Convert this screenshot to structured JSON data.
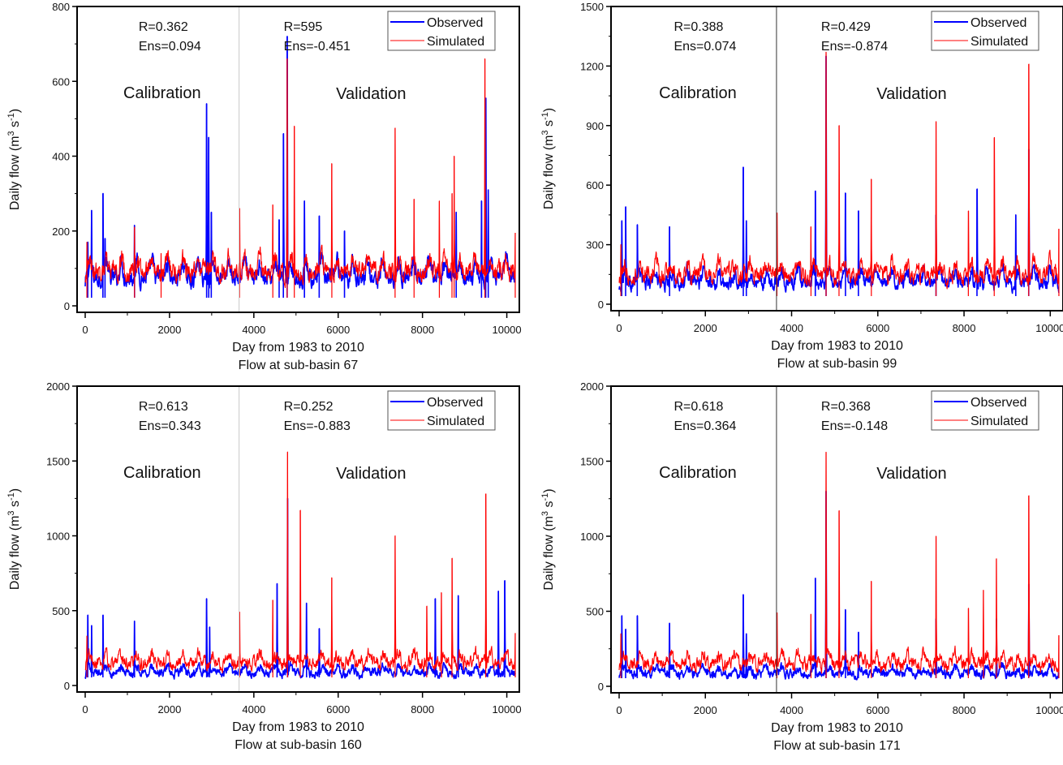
{
  "figure": {
    "legend": {
      "observed_label": "Observed",
      "simulated_label": "Simulated",
      "observed_color": "#0000ff",
      "simulated_color": "#ff0000"
    },
    "colors": {
      "axis": "#000000",
      "split_line_light": "#c8c8c8",
      "split_line_dark": "#333333"
    }
  },
  "chart_data": [
    {
      "type": "line",
      "id": "sub-basin-67",
      "title": "Flow at sub-basin 67",
      "xlabel": "Day from 1983 to 2010",
      "ylabel": "Daily flow (m3 s-1)",
      "xlim": [
        0,
        10220
      ],
      "ylim": [
        0,
        800
      ],
      "xticks": [
        0,
        2000,
        4000,
        6000,
        8000,
        10000
      ],
      "xtick_labels": [
        "0",
        "2000",
        "4000",
        "6000",
        "8000",
        "10000"
      ],
      "yticks": [
        0,
        200,
        400,
        600,
        800
      ],
      "ytick_labels": [
        "0",
        "200",
        "400",
        "600",
        "800"
      ],
      "split_day": 3650,
      "split_style": "light",
      "legend_position": "top-right",
      "calibration": {
        "label": "Calibration",
        "r": "R=0.362",
        "ens": "Ens=0.094"
      },
      "validation": {
        "label": "Validation",
        "r": "R=595",
        "ens": "Ens=-0.451"
      },
      "series": [
        {
          "name": "Observed",
          "color": "#0000ff",
          "base": 55,
          "amp": 45,
          "noise": 35,
          "peaks": [
            [
              60,
              170
            ],
            [
              150,
              255
            ],
            [
              420,
              300
            ],
            [
              470,
              180
            ],
            [
              1170,
              215
            ],
            [
              2880,
              540
            ],
            [
              2930,
              450
            ],
            [
              2990,
              250
            ],
            [
              4600,
              230
            ],
            [
              4700,
              460
            ],
            [
              4790,
              720
            ],
            [
              5200,
              280
            ],
            [
              5550,
              240
            ],
            [
              6150,
              200
            ],
            [
              8800,
              250
            ],
            [
              9400,
              280
            ],
            [
              9500,
              555
            ],
            [
              9560,
              310
            ]
          ]
        },
        {
          "name": "Simulated",
          "color": "#ff0000",
          "base": 75,
          "amp": 35,
          "noise": 40,
          "peaks": [
            [
              40,
              170
            ],
            [
              1170,
              210
            ],
            [
              1800,
              140
            ],
            [
              3660,
              260
            ],
            [
              4450,
              270
            ],
            [
              4790,
              660
            ],
            [
              4960,
              480
            ],
            [
              5850,
              380
            ],
            [
              7350,
              475
            ],
            [
              7800,
              285
            ],
            [
              8400,
              280
            ],
            [
              8700,
              300
            ],
            [
              8750,
              400
            ],
            [
              9480,
              660
            ],
            [
              10200,
              195
            ]
          ]
        }
      ]
    },
    {
      "type": "line",
      "id": "sub-basin-99",
      "title": "Flow at sub-basin 99",
      "xlabel": "Day from 1983 to 2010",
      "ylabel": "Daily flow (m3 s-1)",
      "xlim": [
        0,
        10220
      ],
      "ylim": [
        0,
        1500
      ],
      "xticks": [
        0,
        2000,
        4000,
        6000,
        8000,
        10000
      ],
      "xtick_labels": [
        "0",
        "2000",
        "4000",
        "6000",
        "8000",
        "10000"
      ],
      "yticks": [
        0,
        300,
        600,
        900,
        1200,
        1500
      ],
      "ytick_labels": [
        "0",
        "300",
        "600",
        "900",
        "1200",
        "1500"
      ],
      "split_day": 3650,
      "split_style": "dark",
      "legend_position": "top-right",
      "calibration": {
        "label": "Calibration",
        "r": "R=0.388",
        "ens": "Ens=0.074"
      },
      "validation": {
        "label": "Validation",
        "r": "R=0.429",
        "ens": "Ens=-0.874"
      },
      "series": [
        {
          "name": "Observed",
          "color": "#0000ff",
          "base": 70,
          "amp": 60,
          "noise": 55,
          "peaks": [
            [
              60,
              420
            ],
            [
              150,
              490
            ],
            [
              420,
              400
            ],
            [
              1170,
              390
            ],
            [
              2880,
              690
            ],
            [
              2950,
              420
            ],
            [
              4550,
              570
            ],
            [
              4800,
              1250
            ],
            [
              5250,
              560
            ],
            [
              5550,
              470
            ],
            [
              7350,
              450
            ],
            [
              8300,
              580
            ],
            [
              9200,
              450
            ],
            [
              9500,
              780
            ]
          ]
        },
        {
          "name": "Simulated",
          "color": "#ff0000",
          "base": 110,
          "amp": 55,
          "noise": 70,
          "peaks": [
            [
              40,
              300
            ],
            [
              3660,
              460
            ],
            [
              4450,
              390
            ],
            [
              4800,
              1270
            ],
            [
              5100,
              900
            ],
            [
              5850,
              630
            ],
            [
              7350,
              920
            ],
            [
              8100,
              470
            ],
            [
              8700,
              840
            ],
            [
              9500,
              1210
            ],
            [
              10200,
              380
            ]
          ]
        }
      ]
    },
    {
      "type": "line",
      "id": "sub-basin-160",
      "title": "Flow at sub-basin 160",
      "xlabel": "Day from 1983 to 2010",
      "ylabel": "Daily flow (m3 s-1)",
      "xlim": [
        0,
        10220
      ],
      "ylim": [
        0,
        2000
      ],
      "xticks": [
        0,
        2000,
        4000,
        6000,
        8000,
        10000
      ],
      "xtick_labels": [
        "0",
        "2000",
        "4000",
        "6000",
        "8000",
        "10000"
      ],
      "yticks": [
        0,
        500,
        1000,
        1500,
        2000
      ],
      "ytick_labels": [
        "0",
        "500",
        "1000",
        "1500",
        "2000"
      ],
      "split_day": 3650,
      "split_style": "light",
      "legend_position": "top-right",
      "calibration": {
        "label": "Calibration",
        "r": "R=0.613",
        "ens": "Ens=0.343"
      },
      "validation": {
        "label": "Validation",
        "r": "R=0.252",
        "ens": "Ens=-0.883"
      },
      "series": [
        {
          "name": "Observed",
          "color": "#0000ff",
          "base": 50,
          "amp": 45,
          "noise": 45,
          "peaks": [
            [
              60,
              470
            ],
            [
              150,
              400
            ],
            [
              420,
              470
            ],
            [
              1170,
              430
            ],
            [
              2880,
              580
            ],
            [
              2950,
              390
            ],
            [
              4550,
              680
            ],
            [
              4800,
              1250
            ],
            [
              5250,
              550
            ],
            [
              5550,
              380
            ],
            [
              8300,
              580
            ],
            [
              8850,
              600
            ],
            [
              9800,
              630
            ],
            [
              9950,
              700
            ]
          ]
        },
        {
          "name": "Simulated",
          "color": "#ff0000",
          "base": 110,
          "amp": 60,
          "noise": 70,
          "peaks": [
            [
              40,
              330
            ],
            [
              3660,
              490
            ],
            [
              4450,
              570
            ],
            [
              4800,
              1560
            ],
            [
              5100,
              1170
            ],
            [
              5850,
              720
            ],
            [
              7350,
              1000
            ],
            [
              8100,
              530
            ],
            [
              8450,
              620
            ],
            [
              8700,
              850
            ],
            [
              9500,
              1280
            ],
            [
              10200,
              350
            ]
          ]
        }
      ]
    },
    {
      "type": "line",
      "id": "sub-basin-171",
      "title": "Flow at sub-basin 171",
      "xlabel": "Day from 1983 to 2010",
      "ylabel": "Daily flow (m3 s-1)",
      "xlim": [
        0,
        10220
      ],
      "ylim": [
        0,
        2000
      ],
      "xticks": [
        0,
        2000,
        4000,
        6000,
        8000,
        10000
      ],
      "xtick_labels": [
        "0",
        "2000",
        "4000",
        "6000",
        "8000",
        "10000"
      ],
      "yticks": [
        0,
        500,
        1000,
        1500,
        2000
      ],
      "ytick_labels": [
        "0",
        "500",
        "1000",
        "1500",
        "2000"
      ],
      "split_day": 3650,
      "split_style": "dark",
      "legend_position": "top-right",
      "calibration": {
        "label": "Calibration",
        "r": "R=0.618",
        "ens": "Ens=0.364"
      },
      "validation": {
        "label": "Validation",
        "r": "R=0.368",
        "ens": "Ens=-0.148"
      },
      "series": [
        {
          "name": "Observed",
          "color": "#0000ff",
          "base": 50,
          "amp": 45,
          "noise": 45,
          "peaks": [
            [
              60,
              470
            ],
            [
              150,
              380
            ],
            [
              420,
              470
            ],
            [
              1170,
              420
            ],
            [
              2880,
              610
            ],
            [
              2950,
              350
            ],
            [
              4550,
              720
            ],
            [
              4800,
              1300
            ],
            [
              5250,
              510
            ],
            [
              5550,
              360
            ],
            [
              7350,
              450
            ],
            [
              8750,
              450
            ],
            [
              9500,
              680
            ]
          ]
        },
        {
          "name": "Simulated",
          "color": "#ff0000",
          "base": 110,
          "amp": 60,
          "noise": 70,
          "peaks": [
            [
              40,
              350
            ],
            [
              3660,
              490
            ],
            [
              4450,
              480
            ],
            [
              4800,
              1560
            ],
            [
              5100,
              1170
            ],
            [
              5850,
              700
            ],
            [
              7350,
              1000
            ],
            [
              8100,
              520
            ],
            [
              8450,
              640
            ],
            [
              8750,
              850
            ],
            [
              9500,
              1270
            ],
            [
              10200,
              340
            ]
          ]
        }
      ]
    }
  ]
}
